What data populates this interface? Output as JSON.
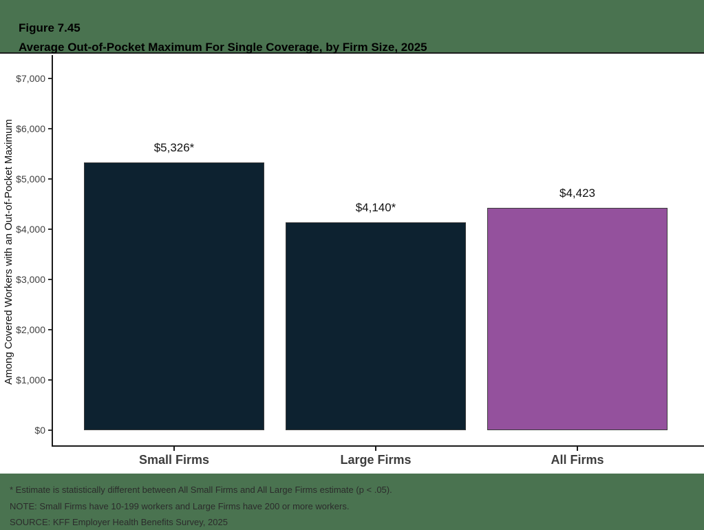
{
  "title": {
    "figure": "Figure 7.45",
    "main": "Average Out-of-Pocket Maximum For Single Coverage, by Firm Size, 2025"
  },
  "chart_data": {
    "type": "bar",
    "categories": [
      "Small Firms",
      "Large Firms",
      "All Firms"
    ],
    "values": [
      5326,
      4140,
      4423
    ],
    "bar_labels": [
      "$5,326*",
      "$4,140*",
      "$4,423"
    ],
    "bar_colors": [
      "#0D2230",
      "#0D2230",
      "#94519D"
    ],
    "title": "Average Out-of-Pocket Maximum For Single Coverage, by Firm Size, 2025",
    "xlabel": "",
    "ylabel": "Among Covered Workers with an Out-of-Pocket Maximum",
    "ylim": [
      0,
      7000
    ],
    "ytick_values": [
      0,
      1000,
      2000,
      3000,
      4000,
      5000,
      6000,
      7000
    ],
    "ytick_labels": [
      "$0",
      "$1,000",
      "$2,000",
      "$3,000",
      "$4,000",
      "$5,000",
      "$6,000",
      "$7,000"
    ],
    "grid": false,
    "legend": null
  },
  "footnotes": [
    "* Estimate is statistically different between All Small Firms and All Large Firms estimate (p < .05).",
    "NOTE: Small Firms have 10-199 workers and Large Firms have 200 or more workers.",
    "SOURCE: KFF Employer Health Benefits Survey, 2025"
  ],
  "colors": {
    "band_green": "#4A7350",
    "bar_navy": "#0D2230",
    "bar_purple": "#94519D",
    "axis": "#1A1A1A"
  }
}
